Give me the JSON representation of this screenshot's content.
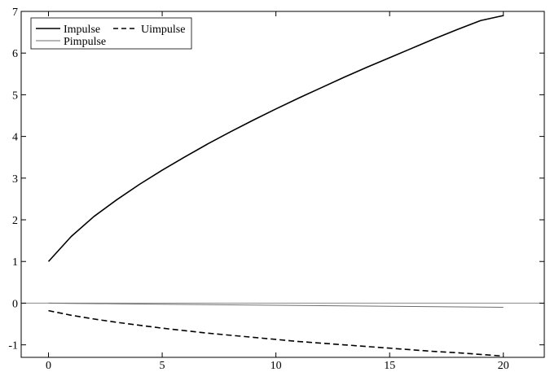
{
  "chart_data": {
    "type": "line",
    "title": "",
    "xlabel": "",
    "ylabel": "",
    "xlim": [
      -1.2,
      21.8
    ],
    "ylim": [
      -1.3,
      7
    ],
    "x_ticks": [
      0,
      5,
      10,
      15,
      20
    ],
    "y_ticks": [
      -1,
      0,
      1,
      2,
      3,
      4,
      5,
      6,
      7
    ],
    "x_tick_labels": [
      "0",
      "5",
      "10",
      "15",
      "20"
    ],
    "y_tick_labels": [
      "-1",
      "0",
      "1",
      "2",
      "3",
      "4",
      "5",
      "6",
      "7"
    ],
    "reference_line_y": 0,
    "legend_position": "top-left",
    "x": [
      0,
      1,
      2,
      3,
      4,
      5,
      6,
      7,
      8,
      9,
      10,
      11,
      12,
      13,
      14,
      15,
      16,
      17,
      18,
      19,
      20
    ],
    "series": [
      {
        "name": "Impulse",
        "style": "solid",
        "color": "#000000",
        "values": [
          1.0,
          1.6,
          2.08,
          2.48,
          2.85,
          3.19,
          3.51,
          3.82,
          4.11,
          4.39,
          4.66,
          4.92,
          5.17,
          5.42,
          5.66,
          5.89,
          6.12,
          6.35,
          6.57,
          6.78,
          6.9
        ]
      },
      {
        "name": "Uimpulse",
        "style": "dashed",
        "color": "#000000",
        "values": [
          -0.18,
          -0.29,
          -0.38,
          -0.46,
          -0.53,
          -0.6,
          -0.66,
          -0.72,
          -0.77,
          -0.82,
          -0.87,
          -0.92,
          -0.96,
          -1.0,
          -1.04,
          -1.08,
          -1.12,
          -1.16,
          -1.19,
          -1.23,
          -1.27
        ]
      },
      {
        "name": "Pimpulse",
        "style": "solid-thin",
        "color": "#6e6e6e",
        "values": [
          0.0,
          -0.005,
          -0.01,
          -0.015,
          -0.02,
          -0.025,
          -0.03,
          -0.035,
          -0.04,
          -0.045,
          -0.05,
          -0.055,
          -0.06,
          -0.065,
          -0.07,
          -0.075,
          -0.08,
          -0.085,
          -0.09,
          -0.095,
          -0.1
        ]
      }
    ]
  }
}
